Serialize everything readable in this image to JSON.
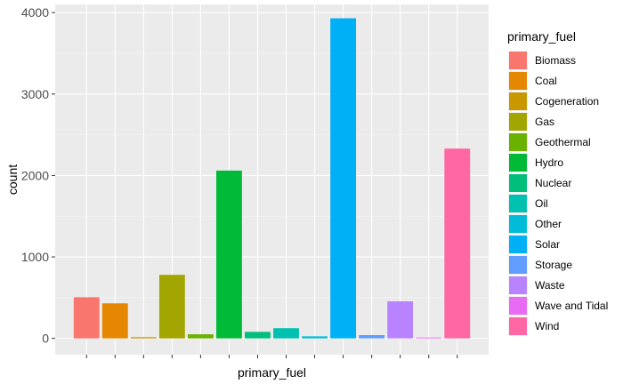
{
  "chart_data": {
    "type": "bar",
    "xlabel": "primary_fuel",
    "ylabel": "count",
    "ylim": [
      -200,
      4100
    ],
    "yticks": [
      0,
      1000,
      2000,
      3000,
      4000
    ],
    "grid": true,
    "legend_title": "primary_fuel",
    "legend_position": "right",
    "categories": [
      "Biomass",
      "Coal",
      "Cogeneration",
      "Gas",
      "Geothermal",
      "Hydro",
      "Nuclear",
      "Oil",
      "Other",
      "Solar",
      "Storage",
      "Waste",
      "Wave and Tidal",
      "Wind"
    ],
    "values": [
      505,
      430,
      15,
      780,
      50,
      2060,
      80,
      125,
      25,
      3930,
      40,
      455,
      10,
      2330
    ],
    "colors": [
      "#F8766D",
      "#E58700",
      "#C99800",
      "#A3A500",
      "#6BB100",
      "#00BA38",
      "#00BF7D",
      "#00C0AF",
      "#00BCD8",
      "#00B0F6",
      "#619CFF",
      "#B983FF",
      "#E76BF3",
      "#FF67A4"
    ]
  }
}
